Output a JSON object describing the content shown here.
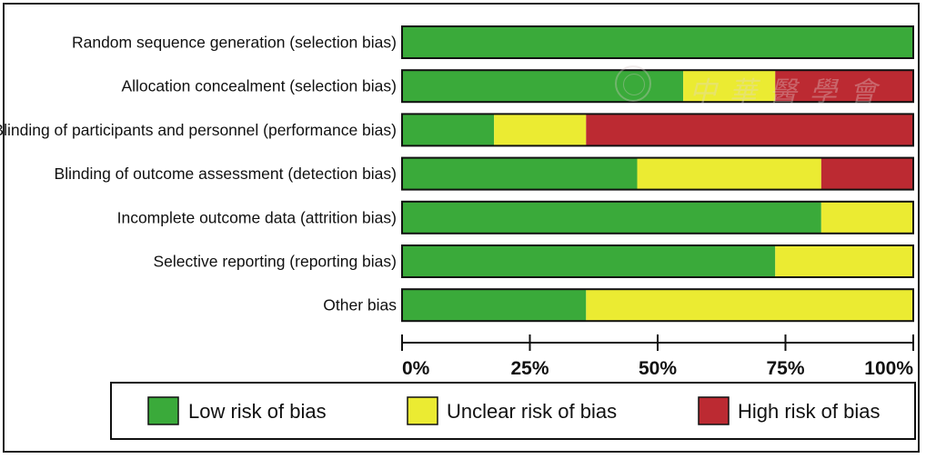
{
  "chart_data": {
    "type": "bar",
    "orientation": "horizontal",
    "stacked": true,
    "categories": [
      "Random sequence generation (selection bias)",
      "Allocation concealment (selection bias)",
      "Blinding of participants and personnel (performance bias)",
      "Blinding of outcome assessment (detection bias)",
      "Incomplete outcome data (attrition bias)",
      "Selective reporting (reporting bias)",
      "Other bias"
    ],
    "series": [
      {
        "name": "Low risk of bias",
        "color": "#3aaa3a",
        "values": [
          100,
          55,
          18,
          46,
          82,
          73,
          36
        ]
      },
      {
        "name": "Unclear risk of bias",
        "color": "#ebeb32",
        "values": [
          0,
          18,
          18,
          36,
          18,
          27,
          64
        ]
      },
      {
        "name": "High risk of bias",
        "color": "#bc2a32",
        "values": [
          0,
          27,
          64,
          18,
          0,
          0,
          0
        ]
      }
    ],
    "xlim": [
      0,
      100
    ],
    "xticks": [
      "0%",
      "25%",
      "50%",
      "75%",
      "100%"
    ],
    "xtick_values": [
      0,
      25,
      50,
      75,
      100
    ],
    "grid": false,
    "legend_position": "bottom"
  },
  "watermark": {
    "text": "中華醫學會"
  }
}
